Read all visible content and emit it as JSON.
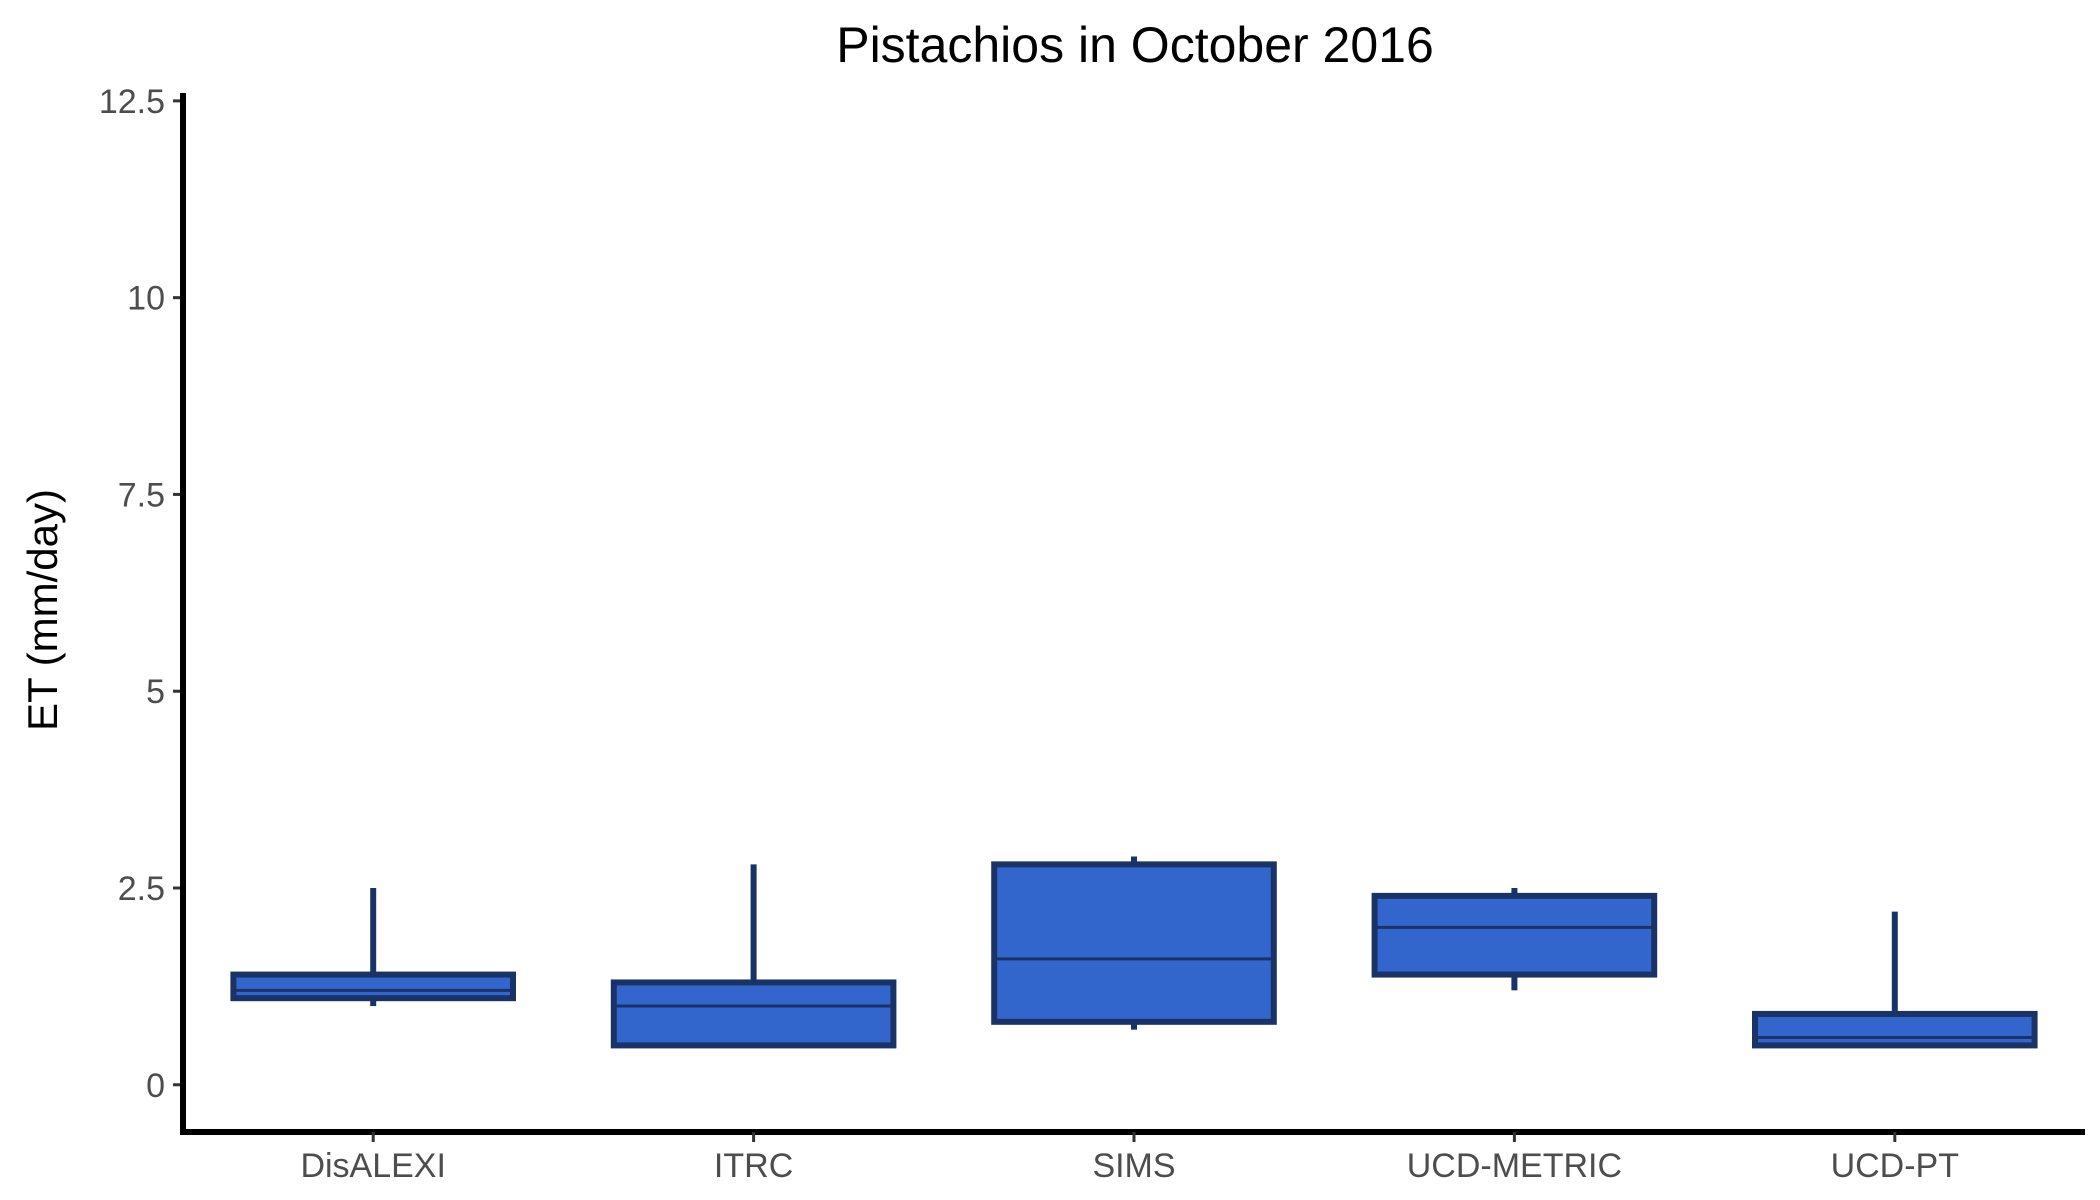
{
  "chart_data": {
    "type": "boxplot",
    "title": "Pistachios in October 2016",
    "xlabel": "",
    "ylabel": "ET (mm/day)",
    "ylim": [
      -0.6,
      12.6
    ],
    "yticks": [
      0,
      2.5,
      5,
      7.5,
      10,
      12.5
    ],
    "ytick_labels": [
      "0",
      "2.5",
      "5",
      "7.5",
      "10",
      "12.5"
    ],
    "grid": false,
    "legend": "none",
    "fill_color": "#3366cc",
    "line_color": "#1a3366",
    "categories": [
      "DisALEXI",
      "ITRC",
      "SIMS",
      "UCD-METRIC",
      "UCD-PT"
    ],
    "boxes": [
      {
        "category": "DisALEXI",
        "min": 1.0,
        "q1": 1.1,
        "median": 1.2,
        "q3": 1.4,
        "max": 2.5
      },
      {
        "category": "ITRC",
        "min": 0.5,
        "q1": 0.5,
        "median": 1.0,
        "q3": 1.3,
        "max": 2.8
      },
      {
        "category": "SIMS",
        "min": 0.7,
        "q1": 0.8,
        "median": 1.6,
        "q3": 2.8,
        "max": 2.9
      },
      {
        "category": "UCD-METRIC",
        "min": 1.2,
        "q1": 1.4,
        "median": 2.0,
        "q3": 2.4,
        "max": 2.5
      },
      {
        "category": "UCD-PT",
        "min": 0.5,
        "q1": 0.5,
        "median": 0.6,
        "q3": 0.9,
        "max": 2.2
      }
    ]
  }
}
